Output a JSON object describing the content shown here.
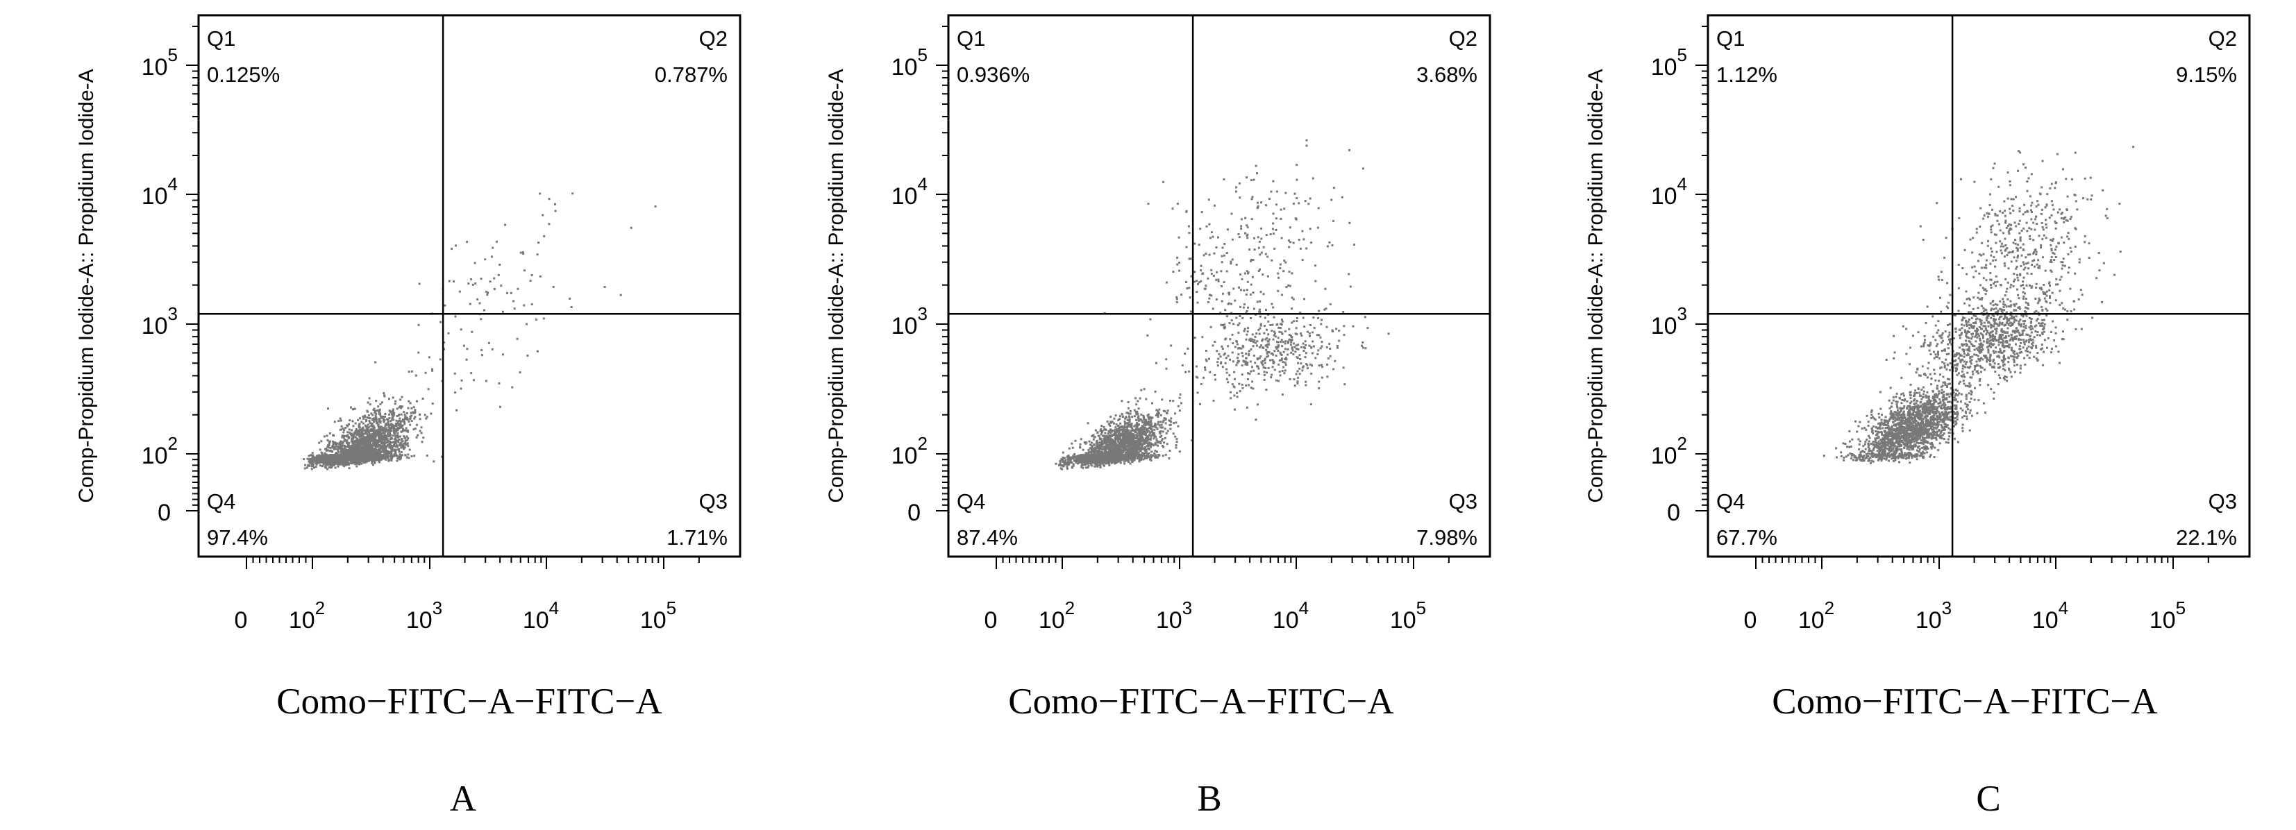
{
  "panel_labels": [
    "A",
    "B",
    "C"
  ],
  "chart_data": [
    {
      "type": "scatter",
      "title": "",
      "xlabel": "Como−FITC−A−FITC−A",
      "ylabel": "Comp-Propidium Iodide-A:: Propidium Iodide-A",
      "x_scale": "biexponential",
      "y_scale": "biexponential",
      "xlim": [
        -100,
        300000
      ],
      "ylim": [
        -100,
        300000
      ],
      "x_ticks": [
        {
          "value": 0,
          "base": "0",
          "exp": ""
        },
        {
          "value": 100,
          "base": "10",
          "exp": "2"
        },
        {
          "value": 1000,
          "base": "10",
          "exp": "3"
        },
        {
          "value": 10000,
          "base": "10",
          "exp": "4"
        },
        {
          "value": 100000,
          "base": "10",
          "exp": "5"
        }
      ],
      "y_ticks": [
        {
          "value": 0,
          "base": "0",
          "exp": ""
        },
        {
          "value": 100,
          "base": "10",
          "exp": "2"
        },
        {
          "value": 1000,
          "base": "10",
          "exp": "3"
        },
        {
          "value": 10000,
          "base": "10",
          "exp": "4"
        },
        {
          "value": 100000,
          "base": "10",
          "exp": "5"
        }
      ],
      "gate": {
        "x": 1300,
        "y": 1200
      },
      "quadrants": [
        {
          "name": "Q1",
          "percent": "0.125%"
        },
        {
          "name": "Q2",
          "percent": "0.787%"
        },
        {
          "name": "Q3",
          "percent": "1.71%"
        },
        {
          "name": "Q4",
          "percent": "97.4%"
        }
      ],
      "populations": [
        {
          "cx": 2.4,
          "cy": 2.0,
          "sx": 0.2,
          "sy": 0.16,
          "rho": 0.6,
          "n": 2700
        },
        {
          "cx": 3.5,
          "cy": 3.1,
          "sx": 0.45,
          "sy": 0.45,
          "rho": 0.7,
          "n": 120
        }
      ],
      "point_color": "#787878",
      "seed": 11
    },
    {
      "type": "scatter",
      "title": "",
      "xlabel": "Como−FITC−A−FITC−A",
      "ylabel": "Comp-Propidium Iodide-A:: Propidium Iodide-A",
      "x_scale": "biexponential",
      "y_scale": "biexponential",
      "xlim": [
        -100,
        300000
      ],
      "ylim": [
        -100,
        300000
      ],
      "x_ticks": [
        {
          "value": 0,
          "base": "0",
          "exp": ""
        },
        {
          "value": 100,
          "base": "10",
          "exp": "2"
        },
        {
          "value": 1000,
          "base": "10",
          "exp": "3"
        },
        {
          "value": 10000,
          "base": "10",
          "exp": "4"
        },
        {
          "value": 100000,
          "base": "10",
          "exp": "5"
        }
      ],
      "y_ticks": [
        {
          "value": 0,
          "base": "0",
          "exp": ""
        },
        {
          "value": 100,
          "base": "10",
          "exp": "2"
        },
        {
          "value": 1000,
          "base": "10",
          "exp": "3"
        },
        {
          "value": 10000,
          "base": "10",
          "exp": "4"
        },
        {
          "value": 100000,
          "base": "10",
          "exp": "5"
        }
      ],
      "gate": {
        "x": 1300,
        "y": 1200
      },
      "quadrants": [
        {
          "name": "Q1",
          "percent": "0.936%"
        },
        {
          "name": "Q2",
          "percent": "3.68%"
        },
        {
          "name": "Q3",
          "percent": "7.98%"
        },
        {
          "name": "Q4",
          "percent": "87.4%"
        }
      ],
      "populations": [
        {
          "cx": 2.45,
          "cy": 2.0,
          "sx": 0.19,
          "sy": 0.15,
          "rho": 0.6,
          "n": 2400
        },
        {
          "cx": 3.8,
          "cy": 2.8,
          "sx": 0.3,
          "sy": 0.15,
          "rho": 0.3,
          "n": 420
        },
        {
          "cx": 3.55,
          "cy": 3.45,
          "sx": 0.38,
          "sy": 0.35,
          "rho": 0.3,
          "n": 300
        }
      ],
      "point_color": "#787878",
      "seed": 23
    },
    {
      "type": "scatter",
      "title": "",
      "xlabel": "Como−FITC−A−FITC−A",
      "ylabel": "Comp-Propidium Iodide-A:: Propidium Iodide-A",
      "x_scale": "biexponential",
      "y_scale": "biexponential",
      "xlim": [
        -100,
        300000
      ],
      "ylim": [
        -100,
        300000
      ],
      "x_ticks": [
        {
          "value": 0,
          "base": "0",
          "exp": ""
        },
        {
          "value": 100,
          "base": "10",
          "exp": "2"
        },
        {
          "value": 1000,
          "base": "10",
          "exp": "3"
        },
        {
          "value": 10000,
          "base": "10",
          "exp": "4"
        },
        {
          "value": 100000,
          "base": "10",
          "exp": "5"
        }
      ],
      "y_ticks": [
        {
          "value": 0,
          "base": "0",
          "exp": ""
        },
        {
          "value": 100,
          "base": "10",
          "exp": "2"
        },
        {
          "value": 1000,
          "base": "10",
          "exp": "3"
        },
        {
          "value": 10000,
          "base": "10",
          "exp": "4"
        },
        {
          "value": 100000,
          "base": "10",
          "exp": "5"
        }
      ],
      "gate": {
        "x": 1300,
        "y": 1200
      },
      "quadrants": [
        {
          "name": "Q1",
          "percent": "1.12%"
        },
        {
          "name": "Q2",
          "percent": "9.15%"
        },
        {
          "name": "Q3",
          "percent": "22.1%"
        },
        {
          "name": "Q4",
          "percent": "67.7%"
        }
      ],
      "populations": [
        {
          "cx": 2.75,
          "cy": 2.2,
          "sx": 0.22,
          "sy": 0.16,
          "rho": 0.6,
          "n": 1800
        },
        {
          "cx": 3.45,
          "cy": 2.9,
          "sx": 0.3,
          "sy": 0.18,
          "rho": 0.4,
          "n": 900
        },
        {
          "cx": 3.7,
          "cy": 3.6,
          "sx": 0.32,
          "sy": 0.3,
          "rho": 0.3,
          "n": 420
        }
      ],
      "point_color": "#787878",
      "seed": 37
    }
  ]
}
